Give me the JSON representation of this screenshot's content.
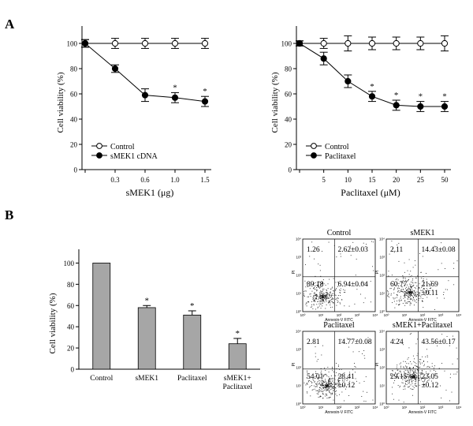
{
  "panels": {
    "a_label": "A",
    "b_label": "B"
  },
  "colors": {
    "bar": "#a6a6a6",
    "line": "#000000",
    "dots": "#1a1a1a"
  },
  "chart_data": [
    {
      "type": "line",
      "x": [
        "",
        "0.3",
        "0.6",
        "1.0",
        "1.5"
      ],
      "xlabel": "sMEK1 (μg)",
      "ylabel": "Cell viability (%)",
      "yticks": [
        "0",
        "20",
        "40",
        "60",
        "80",
        "100"
      ],
      "ylim": [
        0,
        110
      ],
      "series": [
        {
          "name": "Control",
          "marker": "open-circle",
          "values": [
            100,
            100,
            100,
            100,
            100
          ],
          "errors": [
            3,
            4,
            4,
            4,
            4
          ]
        },
        {
          "name": "sMEK1 cDNA",
          "marker": "filled-circle",
          "values": [
            100,
            80,
            59,
            57,
            54
          ],
          "errors": [
            3,
            3,
            5,
            4,
            4
          ]
        }
      ],
      "significance": [
        "",
        "",
        "",
        "*",
        "*"
      ],
      "legend": "bottom-left"
    },
    {
      "type": "line",
      "x": [
        "",
        "5",
        "10",
        "15",
        "20",
        "25",
        "50"
      ],
      "xlabel": "Paclitaxel (μM)",
      "ylabel": "Cell viability (%)",
      "yticks": [
        "0",
        "20",
        "40",
        "60",
        "80",
        "100"
      ],
      "ylim": [
        0,
        110
      ],
      "series": [
        {
          "name": "Control",
          "marker": "open-circle",
          "values": [
            100,
            100,
            100,
            100,
            100,
            100,
            100
          ],
          "errors": [
            2,
            4,
            6,
            5,
            5,
            5,
            6
          ]
        },
        {
          "name": "Paclitaxel",
          "marker": "filled-circle",
          "values": [
            100,
            88,
            70,
            58,
            51,
            50,
            50
          ],
          "errors": [
            2,
            5,
            5,
            4,
            4,
            4,
            4
          ]
        }
      ],
      "significance": [
        "",
        "",
        "",
        "*",
        "*",
        "*",
        "*"
      ],
      "legend": "bottom-left"
    },
    {
      "type": "bar",
      "categories": [
        "Control",
        "sMEK1",
        "Paclitaxel",
        "sMEK1+\nPaclitaxel"
      ],
      "values": [
        100,
        58,
        51,
        24
      ],
      "errors": [
        0,
        2,
        4,
        5
      ],
      "significance": [
        "",
        "*",
        "*",
        "*"
      ],
      "ylabel": "Cell viability (%)",
      "yticks": [
        "0",
        "20",
        "40",
        "60",
        "80",
        "100"
      ],
      "ylim": [
        0,
        110
      ]
    }
  ],
  "flow_panels": [
    {
      "title": "Control",
      "q_ul": "1.26",
      "q_ur": "2.62±0.03",
      "q_ll": "89.18",
      "q_lr": "6.94±0.04",
      "cluster": [
        0.3,
        0.2
      ]
    },
    {
      "title": "sMEK1",
      "q_ul": "2.11",
      "q_ur": "14.43±0.08",
      "q_ll": "60.77",
      "q_lr": "21.69\n±0.11",
      "cluster": [
        0.4,
        0.3
      ]
    },
    {
      "title": "Paclitaxel",
      "q_ul": "2.81",
      "q_ur": "14.77±0.08",
      "q_ll": "54.01",
      "q_lr": "28.41\n±0.12",
      "cluster": [
        0.42,
        0.28
      ]
    },
    {
      "title": "sMEK1+Paclitaxel",
      "q_ul": "4.24",
      "q_ur": "43.56±0.17",
      "q_ll": "29.15",
      "q_lr": "23.05\n±0.12",
      "cluster": [
        0.5,
        0.5
      ]
    }
  ],
  "flow_axes": {
    "xlabel": "Annexin-V FITC",
    "ylabel": "PI",
    "xticks": [
      "10⁰",
      "10¹",
      "10²",
      "10³",
      "10⁴"
    ],
    "yticks": [
      "10⁰",
      "10¹",
      "10²",
      "10³",
      "10⁴"
    ]
  }
}
